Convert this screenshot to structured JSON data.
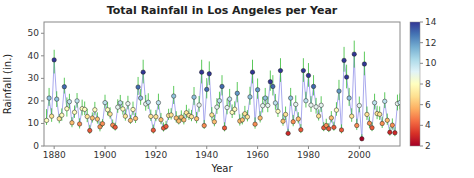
{
  "chart_data": {
    "type": "scatter",
    "title": "Total Rainfall in Los Angeles per Year",
    "xlabel": "Year",
    "ylabel": "Rainfall (in.)",
    "xlim": [
      1876,
      2016
    ],
    "ylim": [
      0,
      55
    ],
    "xticks": [
      1880,
      1900,
      1920,
      1940,
      1960,
      1980,
      2000
    ],
    "yticks": [
      0,
      10,
      20,
      30,
      40,
      50
    ],
    "grid": false,
    "marker": "circle",
    "line_style": "solid",
    "color": "#aaaaee",
    "colorbar_range": [
      2,
      14
    ],
    "colorbar_ticks": [
      2,
      4,
      6,
      8,
      10,
      12,
      14
    ],
    "x": [
      1877,
      1878,
      1879,
      1880,
      1881,
      1882,
      1883,
      1884,
      1885,
      1886,
      1887,
      1888,
      1889,
      1890,
      1891,
      1892,
      1893,
      1894,
      1895,
      1896,
      1897,
      1898,
      1899,
      1900,
      1901,
      1902,
      1903,
      1904,
      1905,
      1906,
      1907,
      1908,
      1909,
      1910,
      1911,
      1912,
      1913,
      1914,
      1915,
      1916,
      1917,
      1918,
      1919,
      1920,
      1921,
      1922,
      1923,
      1924,
      1925,
      1926,
      1927,
      1928,
      1929,
      1930,
      1931,
      1932,
      1933,
      1934,
      1935,
      1936,
      1937,
      1938,
      1939,
      1940,
      1941,
      1942,
      1943,
      1944,
      1945,
      1946,
      1947,
      1948,
      1949,
      1950,
      1951,
      1952,
      1953,
      1954,
      1955,
      1956,
      1957,
      1958,
      1959,
      1960,
      1961,
      1962,
      1963,
      1964,
      1965,
      1966,
      1967,
      1968,
      1969,
      1970,
      1971,
      1972,
      1973,
      1974,
      1975,
      1976,
      1977,
      1978,
      1979,
      1980,
      1981,
      1982,
      1983,
      1984,
      1985,
      1986,
      1987,
      1988,
      1989,
      1990,
      1991,
      1992,
      1993,
      1994,
      1995,
      1996,
      1997,
      1998,
      1999,
      2000,
      2001,
      2002,
      2003,
      2004,
      2005,
      2006,
      2007,
      2008,
      2009,
      2010,
      2011,
      2012,
      2013,
      2014,
      2015,
      2016
    ],
    "values": [
      11.35,
      21.26,
      13.22,
      38.18,
      20.78,
      12.09,
      13.66,
      26.28,
      16.54,
      19.66,
      10.32,
      14.97,
      20.0,
      9.77,
      16.57,
      16.24,
      13.08,
      6.87,
      12.41,
      16.07,
      11.94,
      8.5,
      9.92,
      19.24,
      16.08,
      14.16,
      9.26,
      8.34,
      17.22,
      19.15,
      16.42,
      13.24,
      18.78,
      11.33,
      16.18,
      12.21,
      26.13,
      21.26,
      32.76,
      18.65,
      19.39,
      13.13,
      7.01,
      13.0,
      19.21,
      11.66,
      7.93,
      8.67,
      13.51,
      13.76,
      22.14,
      12.42,
      11.07,
      12.82,
      11.58,
      14.77,
      13.57,
      13.0,
      21.66,
      12.1,
      18.17,
      32.76,
      9.06,
      25.11,
      32.03,
      13.77,
      10.75,
      17.24,
      20.07,
      26.42,
      8.0,
      17.05,
      20.82,
      14.92,
      16.29,
      23.38,
      11.07,
      11.58,
      14.31,
      12.91,
      21.77,
      32.76,
      9.69,
      24.95,
      12.43,
      17.87,
      21.26,
      18.0,
      28.48,
      26.42,
      19.09,
      15.37,
      33.44,
      10.99,
      14.0,
      5.61,
      21.26,
      10.76,
      18.45,
      12.0,
      7.22,
      33.44,
      20.07,
      31.28,
      18.12,
      26.42,
      17.35,
      13.29,
      18.06,
      8.08,
      9.09,
      7.66,
      12.47,
      8.28,
      15.93,
      24.35,
      7.11,
      37.96,
      30.57,
      21.26,
      13.22,
      40.75,
      9.08,
      17.94,
      3.21,
      36.36,
      14.0,
      10.08,
      8.08,
      19.19,
      14.39,
      14.06,
      9.99,
      19.82,
      11.4,
      6.07,
      9.23,
      5.85,
      18.79,
      19.28
    ],
    "color_values": [
      8,
      11,
      7,
      14,
      11,
      7,
      8,
      13,
      8,
      10,
      6,
      8,
      10,
      5,
      8,
      8,
      7,
      4,
      6,
      8,
      6,
      5,
      5,
      10,
      8,
      7,
      5,
      4,
      9,
      10,
      8,
      7,
      9,
      6,
      8,
      6,
      13,
      11,
      14,
      9,
      10,
      7,
      4,
      7,
      10,
      6,
      4,
      4,
      7,
      7,
      11,
      6,
      6,
      6,
      6,
      7,
      7,
      7,
      11,
      6,
      9,
      14,
      5,
      13,
      14,
      7,
      6,
      9,
      10,
      13,
      4,
      9,
      10,
      8,
      8,
      12,
      6,
      6,
      7,
      7,
      11,
      14,
      5,
      12,
      6,
      9,
      11,
      9,
      14,
      13,
      10,
      8,
      14,
      6,
      7,
      3,
      11,
      5,
      9,
      6,
      4,
      14,
      10,
      14,
      9,
      13,
      9,
      7,
      9,
      4,
      5,
      4,
      6,
      4,
      8,
      12,
      4,
      14,
      14,
      11,
      7,
      14,
      5,
      9,
      2,
      14,
      7,
      5,
      4,
      10,
      7,
      7,
      5,
      10,
      6,
      3,
      5,
      3,
      9,
      10
    ],
    "yerr_up": [
      5.0,
      4.5,
      3.5,
      4.5,
      3.5,
      2.0,
      3.0,
      4.0,
      5.0,
      3.5,
      2.5,
      3.0,
      3.5,
      2.5,
      4.0,
      3.5,
      3.5,
      2.5,
      2.5,
      3.5,
      3.0,
      2.5,
      2.0,
      3.5,
      3.5,
      3.0,
      2.5,
      2.0,
      3.5,
      3.5,
      3.5,
      3.0,
      3.5,
      2.5,
      3.5,
      2.5,
      4.5,
      4.0,
      5.5,
      4.0,
      4.0,
      3.0,
      2.5,
      3.0,
      4.0,
      3.0,
      2.5,
      2.5,
      3.0,
      3.0,
      4.5,
      3.0,
      2.5,
      3.0,
      3.0,
      3.5,
      3.0,
      3.0,
      4.5,
      3.0,
      4.0,
      5.5,
      2.5,
      5.0,
      5.5,
      3.5,
      3.0,
      4.0,
      4.0,
      5.0,
      2.5,
      4.0,
      4.5,
      3.5,
      3.5,
      5.0,
      3.0,
      3.0,
      3.5,
      3.0,
      4.5,
      5.5,
      3.0,
      5.0,
      3.0,
      4.0,
      4.5,
      4.0,
      5.0,
      5.0,
      4.0,
      3.5,
      5.5,
      3.0,
      3.5,
      2.0,
      4.5,
      3.0,
      4.0,
      3.0,
      2.5,
      5.5,
      4.0,
      5.5,
      4.0,
      5.0,
      4.0,
      3.0,
      4.0,
      2.5,
      3.0,
      2.5,
      3.0,
      2.5,
      3.5,
      5.0,
      2.5,
      6.0,
      5.5,
      4.5,
      3.5,
      6.0,
      3.0,
      4.0,
      2.0,
      5.5,
      3.5,
      3.0,
      2.5,
      4.0,
      3.5,
      3.5,
      3.0,
      4.0,
      3.0,
      2.5,
      3.0,
      2.5,
      4.0,
      4.0
    ],
    "yerr_down": [
      2.0,
      3.5,
      2.5,
      6.0,
      3.5,
      2.0,
      2.5,
      3.0,
      3.5,
      3.0,
      2.0,
      2.5,
      3.0,
      2.0,
      3.0,
      2.5,
      2.5,
      1.5,
      2.0,
      2.5,
      2.0,
      2.0,
      1.5,
      2.5,
      2.5,
      2.0,
      1.5,
      1.5,
      2.5,
      2.5,
      2.5,
      2.0,
      2.5,
      1.5,
      2.5,
      2.0,
      3.5,
      3.0,
      5.0,
      3.0,
      3.0,
      2.0,
      1.5,
      2.0,
      3.0,
      2.0,
      1.5,
      1.5,
      2.0,
      2.0,
      3.5,
      2.0,
      1.5,
      2.0,
      2.0,
      2.5,
      2.0,
      2.0,
      3.5,
      2.0,
      3.0,
      5.0,
      1.5,
      4.0,
      5.0,
      2.5,
      2.0,
      3.0,
      3.0,
      4.0,
      1.5,
      3.0,
      3.5,
      2.5,
      2.5,
      4.0,
      2.0,
      2.0,
      2.5,
      2.0,
      3.5,
      5.0,
      2.0,
      4.0,
      2.0,
      3.0,
      3.5,
      3.0,
      4.0,
      4.0,
      3.0,
      2.5,
      5.0,
      2.0,
      2.5,
      1.0,
      3.5,
      2.0,
      3.0,
      2.0,
      1.5,
      5.0,
      3.0,
      5.0,
      3.0,
      4.0,
      3.0,
      2.0,
      3.0,
      1.5,
      2.0,
      1.5,
      2.0,
      1.5,
      2.5,
      4.0,
      1.5,
      5.0,
      5.0,
      3.5,
      2.5,
      6.0,
      2.0,
      3.0,
      1.0,
      5.0,
      2.5,
      2.0,
      1.5,
      3.0,
      2.5,
      2.5,
      2.0,
      3.0,
      2.0,
      1.5,
      2.0,
      1.5,
      3.0,
      3.0
    ]
  }
}
